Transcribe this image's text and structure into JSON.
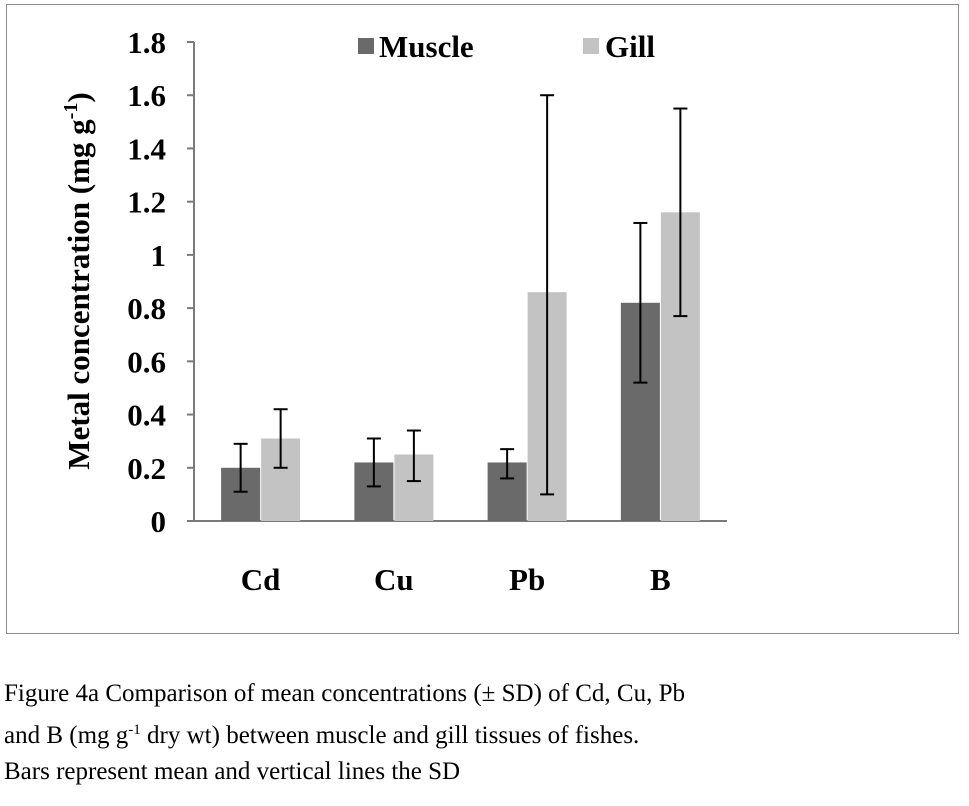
{
  "chart_data": {
    "type": "bar",
    "categories": [
      "Cd",
      "Cu",
      "Pb",
      "B"
    ],
    "series": [
      {
        "name": "Muscle",
        "color": "#6a6a6a",
        "values": [
          0.2,
          0.22,
          0.22,
          0.82
        ],
        "error_low": [
          0.11,
          0.13,
          0.16,
          0.52
        ],
        "error_high": [
          0.29,
          0.31,
          0.27,
          1.12
        ]
      },
      {
        "name": "Gill",
        "color": "#c3c3c3",
        "values": [
          0.31,
          0.25,
          0.86,
          1.16
        ],
        "error_low": [
          0.2,
          0.15,
          0.1,
          0.77
        ],
        "error_high": [
          0.42,
          0.34,
          1.6,
          1.55
        ]
      }
    ],
    "yticks": [
      "0",
      "0.2",
      "0.4",
      "0.6",
      "0.8",
      "1",
      "1.2",
      "1.4",
      "1.6",
      "1.8"
    ],
    "ylim": [
      0,
      1.8
    ],
    "ylabel_main": "Metal concentration (mg g",
    "ylabel_sup": "-1",
    "ylabel_close": ")",
    "grid": false,
    "legend_position": "top-center"
  },
  "caption": {
    "line1": "Figure 4a Comparison of mean concentrations (± SD) of Cd, Cu, Pb",
    "line2_pre": "and B (mg g",
    "line2_sup": "-1",
    "line2_post": " dry wt) between muscle and gill tissues of fishes.",
    "line3": "Bars represent mean and vertical lines the SD"
  }
}
